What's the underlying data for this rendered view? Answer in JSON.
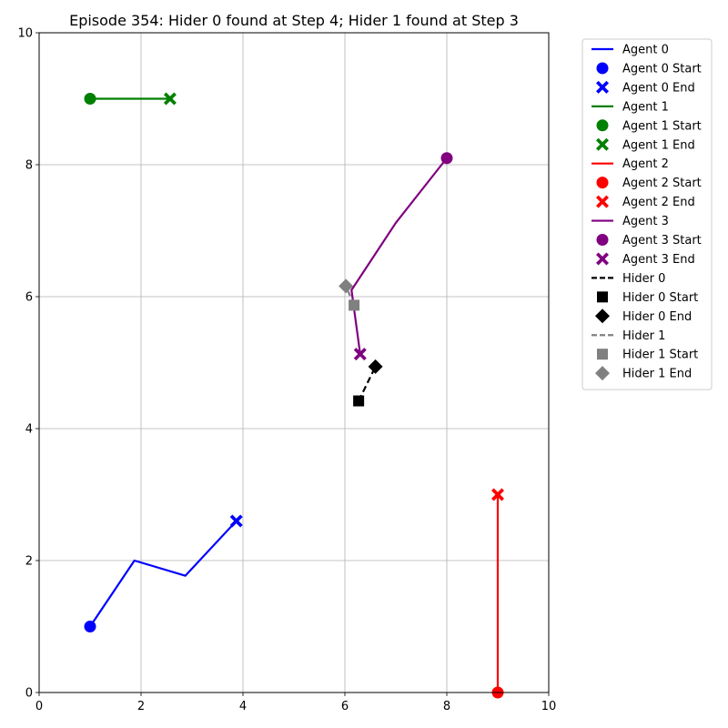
{
  "chart_data": {
    "type": "line",
    "title": "Episode 354: Hider 0 found at Step 4; Hider 1 found at Step 3",
    "xlabel": "",
    "ylabel": "",
    "xlim": [
      0,
      10
    ],
    "ylim": [
      0,
      10
    ],
    "x_ticks": [
      "0",
      "2",
      "4",
      "6",
      "8",
      "10"
    ],
    "y_ticks": [
      "0",
      "2",
      "4",
      "6",
      "8",
      "10"
    ],
    "grid": true,
    "legend_position": "outside-top-right",
    "series": [
      {
        "name": "Agent 0",
        "color": "#0000ff",
        "style": "solid",
        "start_marker": "circle",
        "end_marker": "x",
        "start_label": "Agent 0 Start",
        "end_label": "Agent 0 End",
        "points": [
          [
            1.0,
            1.0
          ],
          [
            1.87,
            2.0
          ],
          [
            2.87,
            1.77
          ],
          [
            3.87,
            2.6
          ]
        ]
      },
      {
        "name": "Agent 1",
        "color": "#008000",
        "style": "solid",
        "start_marker": "circle",
        "end_marker": "x",
        "start_label": "Agent 1 Start",
        "end_label": "Agent 1 End",
        "points": [
          [
            1.0,
            9.0
          ],
          [
            2.57,
            9.0
          ]
        ]
      },
      {
        "name": "Agent 2",
        "color": "#ff0000",
        "style": "solid",
        "start_marker": "circle",
        "end_marker": "x",
        "start_label": "Agent 2 Start",
        "end_label": "Agent 2 End",
        "points": [
          [
            9.0,
            0.0
          ],
          [
            9.0,
            3.0
          ]
        ]
      },
      {
        "name": "Agent 3",
        "color": "#800080",
        "style": "solid",
        "start_marker": "circle",
        "end_marker": "x",
        "start_label": "Agent 3 Start",
        "end_label": "Agent 3 End",
        "points": [
          [
            8.0,
            8.1
          ],
          [
            7.0,
            7.12
          ],
          [
            6.13,
            6.1
          ],
          [
            6.3,
            5.13
          ]
        ]
      },
      {
        "name": "Hider 0",
        "color": "#000000",
        "style": "dashed",
        "start_marker": "square",
        "end_marker": "diamond",
        "start_label": "Hider 0 Start",
        "end_label": "Hider 0 End",
        "points": [
          [
            6.27,
            4.42
          ],
          [
            6.6,
            4.94
          ]
        ]
      },
      {
        "name": "Hider 1",
        "color": "#808080",
        "style": "dashed",
        "start_marker": "square",
        "end_marker": "diamond",
        "start_label": "Hider 1 Start",
        "end_label": "Hider 1 End",
        "points": [
          [
            6.18,
            5.87
          ],
          [
            6.02,
            6.16
          ]
        ]
      }
    ]
  }
}
